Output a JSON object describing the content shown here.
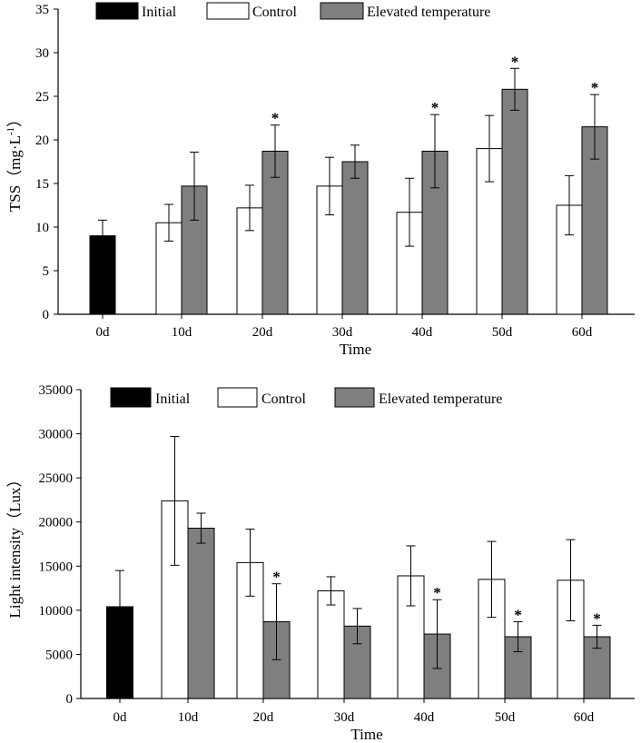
{
  "chart_data": [
    {
      "type": "bar",
      "title": "",
      "xlabel": "Time",
      "ylabel": "TSS（mg·L",
      "ylabel_sup": "-1",
      "ylabel_close": "）",
      "categories": [
        "0d",
        "10d",
        "20d",
        "30d",
        "40d",
        "50d",
        "60d"
      ],
      "ylim": [
        0,
        35
      ],
      "yticks": [
        0,
        5,
        10,
        15,
        20,
        25,
        30,
        35
      ],
      "legend": "top",
      "series": [
        {
          "name": "Initial",
          "color": "#000000",
          "values": [
            9.0,
            null,
            null,
            null,
            null,
            null,
            null
          ],
          "errors": [
            1.8,
            null,
            null,
            null,
            null,
            null,
            null
          ],
          "significant": [
            false,
            false,
            false,
            false,
            false,
            false,
            false
          ]
        },
        {
          "name": "Control",
          "color": "#ffffff",
          "values": [
            null,
            10.5,
            12.2,
            14.7,
            11.7,
            19.0,
            12.5
          ],
          "errors": [
            null,
            2.1,
            2.6,
            3.3,
            3.9,
            3.8,
            3.4
          ],
          "significant": [
            false,
            false,
            false,
            false,
            false,
            false,
            false
          ]
        },
        {
          "name": "Elevated temperature",
          "color": "#7f7f7f",
          "values": [
            null,
            14.7,
            18.7,
            17.5,
            18.7,
            25.8,
            21.5
          ],
          "errors": [
            null,
            3.9,
            3.0,
            1.9,
            4.2,
            2.4,
            3.7
          ],
          "significant": [
            false,
            false,
            true,
            false,
            true,
            true,
            true
          ]
        }
      ],
      "annotation": "*"
    },
    {
      "type": "bar",
      "title": "",
      "xlabel": "Time",
      "ylabel": "Light intensity（Lux）",
      "categories": [
        "0d",
        "10d",
        "20d",
        "30d",
        "40d",
        "50d",
        "60d"
      ],
      "ylim": [
        0,
        35000
      ],
      "yticks": [
        0,
        5000,
        10000,
        15000,
        20000,
        25000,
        30000,
        35000
      ],
      "legend": "top",
      "series": [
        {
          "name": "Initial",
          "color": "#000000",
          "values": [
            10400,
            null,
            null,
            null,
            null,
            null,
            null
          ],
          "errors": [
            4100,
            null,
            null,
            null,
            null,
            null,
            null
          ],
          "significant": [
            false,
            false,
            false,
            false,
            false,
            false,
            false
          ]
        },
        {
          "name": "Control",
          "color": "#ffffff",
          "values": [
            null,
            22400,
            15400,
            12200,
            13900,
            13500,
            13400
          ],
          "errors": [
            null,
            7300,
            3800,
            1600,
            3400,
            4300,
            4600
          ],
          "significant": [
            false,
            false,
            false,
            false,
            false,
            false,
            false
          ]
        },
        {
          "name": "Elevated temperature",
          "color": "#7f7f7f",
          "values": [
            null,
            19300,
            8700,
            8200,
            7300,
            7000,
            7000
          ],
          "errors": [
            null,
            1700,
            4300,
            2000,
            3900,
            1700,
            1300
          ],
          "significant": [
            false,
            false,
            true,
            false,
            true,
            true,
            true
          ]
        }
      ],
      "annotation": "*"
    }
  ]
}
